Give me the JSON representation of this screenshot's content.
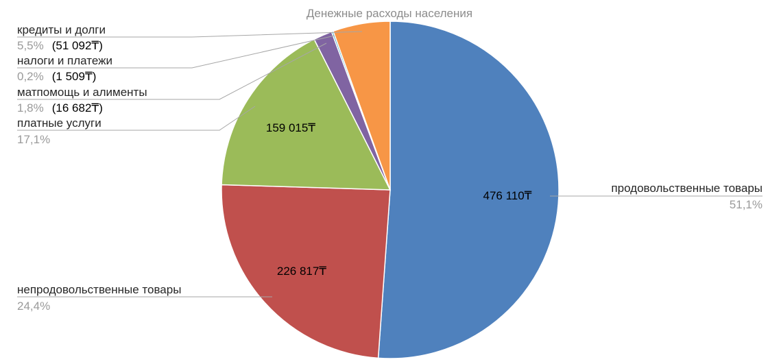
{
  "chart_data": {
    "type": "pie",
    "title": "Денежные расходы населения",
    "slices": [
      {
        "label": "продовольственные товары",
        "percent": "51,1%",
        "value_label": "476 110₸",
        "value": 476110,
        "color": "#4f81bd"
      },
      {
        "label": "непродовольственные товары",
        "percent": "24,4%",
        "value_label": "226 817₸",
        "value": 226817,
        "color": "#c0504d"
      },
      {
        "label": "платные услуги",
        "percent": "17,1%",
        "value_label": "159 015₸",
        "value": 159015,
        "color": "#9bbb59"
      },
      {
        "label": "матпомощь и алименты",
        "percent": "1,8%",
        "value_label": "(16 682₸)",
        "value": 16682,
        "color": "#8064a2"
      },
      {
        "label": "налоги и платежи",
        "percent": "0,2%",
        "value_label": "(1 509₸)",
        "value": 1509,
        "color": "#4bacc6"
      },
      {
        "label": "кредиты и долги",
        "percent": "5,5%",
        "value_label": "(51 092₸)",
        "value": 51092,
        "color": "#f79646"
      }
    ]
  }
}
